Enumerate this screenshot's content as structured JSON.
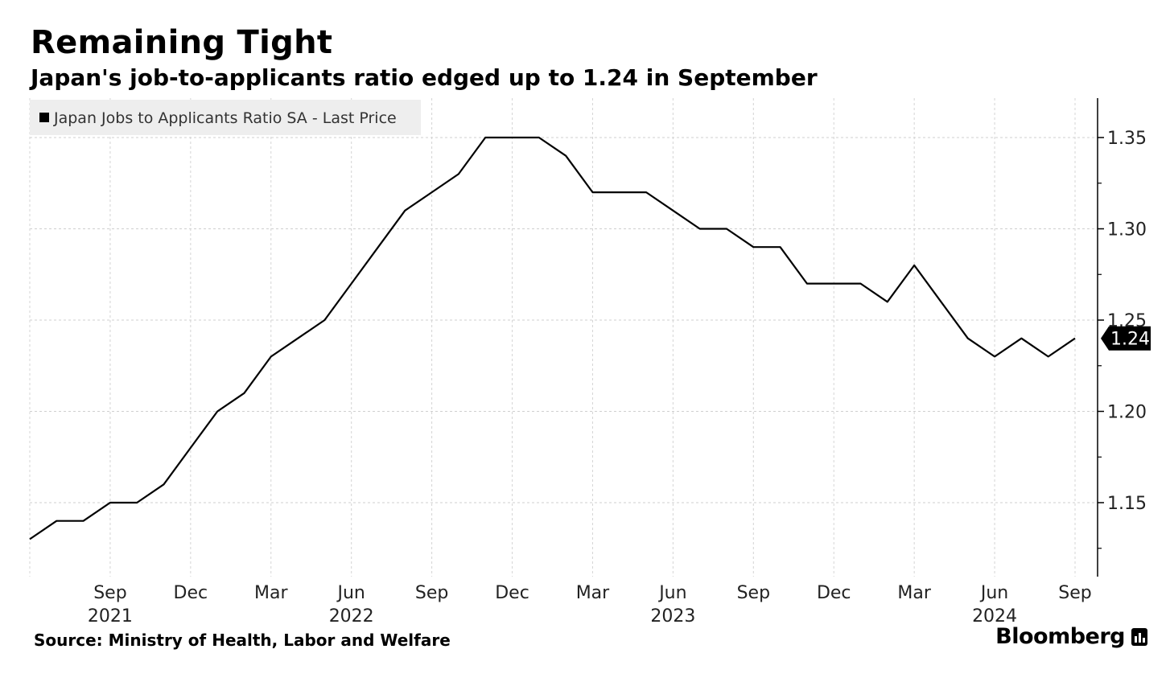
{
  "header": {
    "title": "Remaining Tight",
    "subtitle": "Japan's job-to-applicants ratio edged up to 1.24 in September"
  },
  "footer": {
    "source": "Source: Ministry of Health, Labor and Welfare",
    "brand": "Bloomberg"
  },
  "chart_data": {
    "type": "line",
    "title": "Remaining Tight",
    "subtitle": "Japan's job-to-applicants ratio edged up to 1.24 in September",
    "xlabel": "",
    "ylabel": "",
    "x": [
      "2021-06",
      "2021-07",
      "2021-08",
      "2021-09",
      "2021-10",
      "2021-11",
      "2021-12",
      "2022-01",
      "2022-02",
      "2022-03",
      "2022-04",
      "2022-05",
      "2022-06",
      "2022-07",
      "2022-08",
      "2022-09",
      "2022-10",
      "2022-11",
      "2022-12",
      "2023-01",
      "2023-02",
      "2023-03",
      "2023-04",
      "2023-05",
      "2023-06",
      "2023-07",
      "2023-08",
      "2023-09",
      "2023-10",
      "2023-11",
      "2023-12",
      "2024-01",
      "2024-02",
      "2024-03",
      "2024-04",
      "2024-05",
      "2024-06",
      "2024-07",
      "2024-08",
      "2024-09"
    ],
    "series": [
      {
        "name": "Japan Jobs to Applicants Ratio SA - Last Price",
        "color": "#000000",
        "values": [
          1.13,
          1.14,
          1.14,
          1.15,
          1.15,
          1.16,
          1.18,
          1.2,
          1.21,
          1.23,
          1.24,
          1.25,
          1.27,
          1.29,
          1.31,
          1.32,
          1.33,
          1.35,
          1.35,
          1.35,
          1.34,
          1.32,
          1.32,
          1.32,
          1.31,
          1.3,
          1.3,
          1.29,
          1.29,
          1.27,
          1.27,
          1.27,
          1.26,
          1.28,
          1.26,
          1.24,
          1.23,
          1.24,
          1.23,
          1.24
        ]
      }
    ],
    "last_value_label": "1.24",
    "ylim": [
      1.11,
      1.37
    ],
    "yticks": [
      1.15,
      1.2,
      1.25,
      1.3,
      1.35
    ],
    "ytick_labels": [
      "1.15",
      "1.20",
      "1.25",
      "1.30",
      "1.35"
    ],
    "xticks": [
      {
        "x": "2021-09",
        "label": "Sep",
        "year": "2021"
      },
      {
        "x": "2021-12",
        "label": "Dec",
        "year": ""
      },
      {
        "x": "2022-03",
        "label": "Mar",
        "year": ""
      },
      {
        "x": "2022-06",
        "label": "Jun",
        "year": "2022"
      },
      {
        "x": "2022-09",
        "label": "Sep",
        "year": ""
      },
      {
        "x": "2022-12",
        "label": "Dec",
        "year": ""
      },
      {
        "x": "2023-03",
        "label": "Mar",
        "year": ""
      },
      {
        "x": "2023-06",
        "label": "Jun",
        "year": "2023"
      },
      {
        "x": "2023-09",
        "label": "Sep",
        "year": ""
      },
      {
        "x": "2023-12",
        "label": "Dec",
        "year": ""
      },
      {
        "x": "2024-03",
        "label": "Mar",
        "year": ""
      },
      {
        "x": "2024-06",
        "label": "Jun",
        "year": "2024"
      },
      {
        "x": "2024-09",
        "label": "Sep",
        "year": ""
      }
    ],
    "grid": true,
    "legend_position": "top-left",
    "y_axis_side": "right"
  }
}
